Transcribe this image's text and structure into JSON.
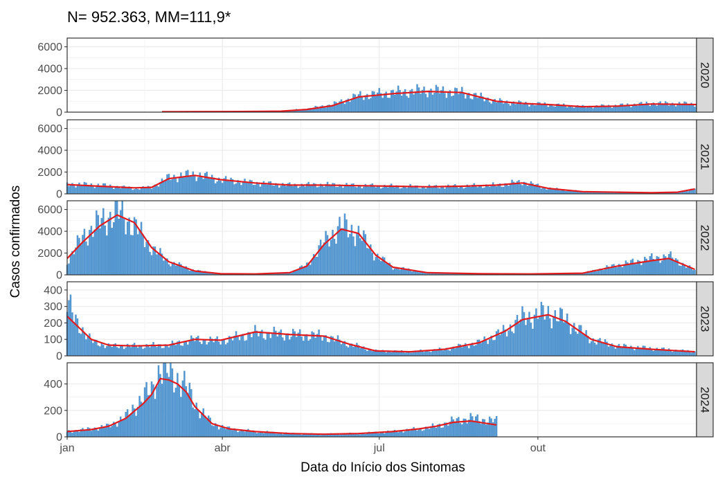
{
  "chart_data": {
    "type": "bar",
    "title": "N= 952.363, MM=111,9*",
    "xlabel": "Data do Início dos Sintomas",
    "ylabel": "Casos confirmados",
    "x_tick_labels": [
      "jan",
      "abr",
      "jul",
      "out"
    ],
    "x_ticks_day_of_year": [
      1,
      91,
      182,
      274
    ],
    "grid": true,
    "legend": "none",
    "colors": {
      "bars": "#5497d0",
      "moving_average": "#e31a1c",
      "strip": "#d9d9d9",
      "panel_border": "#333333",
      "grid": "#ebebeb"
    },
    "panels": [
      {
        "strip_label": "2020",
        "ylim": [
          0,
          6800
        ],
        "y_ticks": [
          0,
          2000,
          4000,
          6000
        ],
        "y_tick_labels": [
          "0",
          "2000",
          "4000",
          "6000"
        ],
        "x_day_of_year": [
          56,
          75,
          100,
          125,
          140,
          155,
          170,
          190,
          210,
          230,
          250,
          265,
          280,
          300,
          320,
          340,
          366
        ],
        "cases": [
          30,
          40,
          60,
          100,
          300,
          700,
          1500,
          1800,
          2000,
          1800,
          1000,
          800,
          700,
          500,
          600,
          800,
          750
        ],
        "moving_average": [
          40,
          50,
          60,
          90,
          250,
          600,
          1400,
          1700,
          1900,
          1800,
          1000,
          800,
          700,
          500,
          550,
          750,
          700
        ]
      },
      {
        "strip_label": "2021",
        "ylim": [
          0,
          6800
        ],
        "y_ticks": [
          0,
          2000,
          4000,
          6000
        ],
        "y_tick_labels": [
          "0",
          "2000",
          "4000",
          "6000"
        ],
        "x_day_of_year": [
          1,
          20,
          40,
          50,
          60,
          75,
          90,
          110,
          130,
          150,
          170,
          190,
          210,
          230,
          250,
          265,
          280,
          300,
          320,
          340,
          355,
          365
        ],
        "cases": [
          900,
          800,
          500,
          600,
          1500,
          1800,
          1300,
          1000,
          800,
          850,
          750,
          700,
          650,
          700,
          800,
          1100,
          500,
          200,
          150,
          100,
          150,
          500
        ],
        "moving_average": [
          850,
          700,
          550,
          600,
          1400,
          1700,
          1300,
          1000,
          800,
          800,
          750,
          700,
          650,
          700,
          800,
          1000,
          500,
          200,
          150,
          100,
          150,
          450
        ]
      },
      {
        "strip_label": "2022",
        "ylim": [
          0,
          6800
        ],
        "y_ticks": [
          0,
          2000,
          4000,
          6000
        ],
        "y_tick_labels": [
          "0",
          "2000",
          "4000",
          "6000"
        ],
        "x_day_of_year": [
          1,
          10,
          20,
          30,
          40,
          50,
          60,
          75,
          90,
          110,
          130,
          140,
          150,
          160,
          170,
          180,
          190,
          210,
          240,
          270,
          300,
          320,
          340,
          350,
          365
        ],
        "cases": [
          1200,
          3500,
          4800,
          5800,
          4500,
          2500,
          1200,
          400,
          100,
          80,
          200,
          900,
          3000,
          4500,
          3800,
          1800,
          700,
          200,
          100,
          80,
          150,
          900,
          1500,
          1700,
          400
        ],
        "moving_average": [
          1500,
          3000,
          4500,
          5500,
          4800,
          2500,
          1200,
          350,
          100,
          80,
          200,
          800,
          2800,
          4200,
          3800,
          1800,
          700,
          200,
          100,
          80,
          150,
          800,
          1300,
          1500,
          500
        ]
      },
      {
        "strip_label": "2023",
        "ylim": [
          0,
          450
        ],
        "y_ticks": [
          0,
          100,
          200,
          300,
          400
        ],
        "y_tick_labels": [
          "0",
          "100",
          "200",
          "300",
          "400"
        ],
        "x_day_of_year": [
          1,
          5,
          15,
          25,
          40,
          60,
          75,
          90,
          110,
          130,
          150,
          165,
          180,
          200,
          220,
          240,
          255,
          265,
          280,
          290,
          305,
          320,
          340,
          365
        ],
        "cases": [
          330,
          230,
          90,
          60,
          60,
          65,
          100,
          90,
          140,
          130,
          120,
          70,
          30,
          25,
          40,
          80,
          150,
          230,
          260,
          220,
          100,
          60,
          45,
          25
        ],
        "moving_average": [
          240,
          200,
          100,
          65,
          60,
          65,
          100,
          95,
          145,
          130,
          120,
          70,
          30,
          25,
          40,
          80,
          150,
          220,
          250,
          210,
          100,
          55,
          40,
          25
        ]
      },
      {
        "strip_label": "2024",
        "ylim": [
          0,
          560
        ],
        "y_ticks": [
          0,
          200,
          400
        ],
        "y_tick_labels": [
          "0",
          "200",
          "400"
        ],
        "x_day_of_year": [
          1,
          15,
          25,
          35,
          45,
          50,
          55,
          60,
          65,
          70,
          75,
          85,
          95,
          110,
          130,
          150,
          170,
          190,
          205,
          215,
          225,
          235,
          250
        ],
        "cases": [
          40,
          60,
          80,
          150,
          300,
          350,
          520,
          480,
          440,
          380,
          250,
          100,
          60,
          40,
          25,
          20,
          25,
          40,
          60,
          80,
          120,
          140,
          120
        ],
        "moving_average": [
          40,
          55,
          80,
          140,
          250,
          320,
          440,
          430,
          400,
          340,
          230,
          100,
          60,
          40,
          25,
          20,
          25,
          40,
          60,
          80,
          110,
          120,
          90
        ]
      }
    ]
  }
}
